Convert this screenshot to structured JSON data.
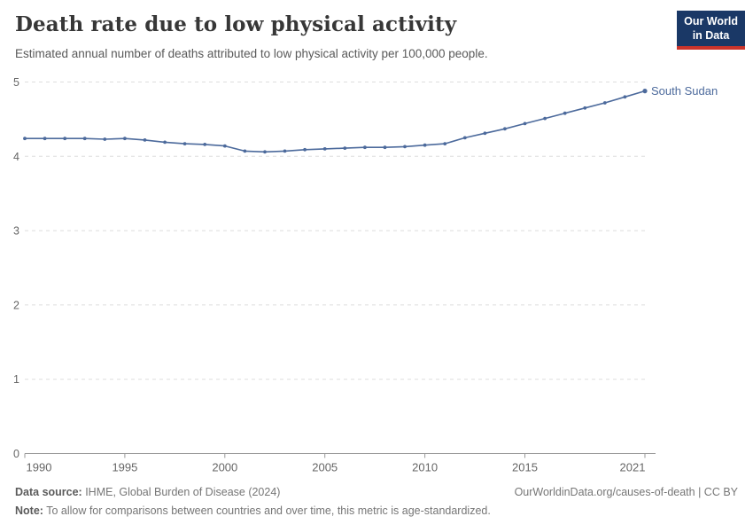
{
  "header": {
    "title": "Death rate due to low physical activity",
    "subtitle": "Estimated annual number of deaths attributed to low physical activity per 100,000 people.",
    "logo_line1": "Our World",
    "logo_line2": "in Data"
  },
  "chart_data": {
    "type": "line",
    "title": "Death rate due to low physical activity",
    "xlabel": "",
    "ylabel": "",
    "x": [
      1990,
      1991,
      1992,
      1993,
      1994,
      1995,
      1996,
      1997,
      1998,
      1999,
      2000,
      2001,
      2002,
      2003,
      2004,
      2005,
      2006,
      2007,
      2008,
      2009,
      2010,
      2011,
      2012,
      2013,
      2014,
      2015,
      2016,
      2017,
      2018,
      2019,
      2020,
      2021
    ],
    "series": [
      {
        "name": "South Sudan",
        "color": "#4C6A9C",
        "values": [
          4.24,
          4.24,
          4.24,
          4.24,
          4.23,
          4.24,
          4.22,
          4.19,
          4.17,
          4.16,
          4.14,
          4.07,
          4.06,
          4.07,
          4.09,
          4.1,
          4.11,
          4.12,
          4.12,
          4.13,
          4.15,
          4.17,
          4.25,
          4.31,
          4.37,
          4.44,
          4.51,
          4.58,
          4.65,
          4.72,
          4.8,
          4.88
        ]
      }
    ],
    "xlim": [
      1990,
      2021
    ],
    "ylim": [
      0,
      5
    ],
    "xticks": [
      1990,
      1995,
      2000,
      2005,
      2010,
      2015,
      2021
    ],
    "yticks": [
      0,
      1,
      2,
      3,
      4,
      5
    ],
    "grid": "horizontal-dashed",
    "legend_position": "end-of-line-label"
  },
  "footer": {
    "source_label": "Data source:",
    "source_text": " IHME, Global Burden of Disease (2024)",
    "rights": "OurWorldinData.org/causes-of-death | CC BY",
    "note_label": "Note:",
    "note_text": " To allow for comparisons between countries and over time, this metric is age-standardized."
  },
  "colors": {
    "line": "#4C6A9C",
    "grid": "#dddddd",
    "axis": "#999999",
    "tick_text": "#666666",
    "logo_bg": "#1A3866",
    "logo_red": "#CB342B"
  }
}
